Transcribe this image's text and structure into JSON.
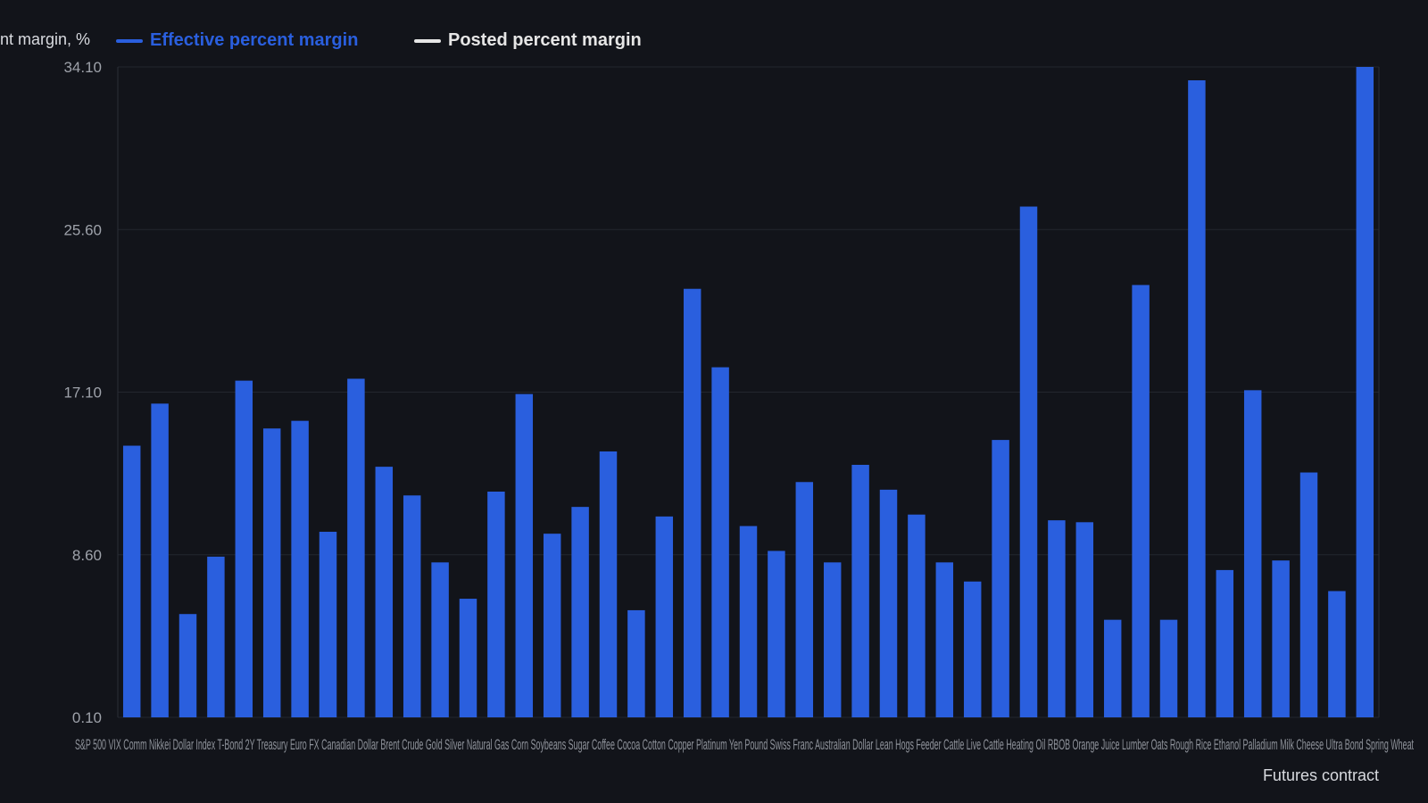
{
  "chart_data": {
    "type": "bar",
    "ylabel": "ent margin, %",
    "xlabel": "Futures contract",
    "colors": {
      "effective": "#2a5fde",
      "posted": "#e6e6e6",
      "background": "#12141a",
      "grid": "#23262e"
    },
    "legend": [
      {
        "name": "Effective percent margin",
        "color": "#2a5fde"
      },
      {
        "name": "Posted percent margin",
        "color": "#e6e6e6"
      }
    ],
    "ylim": [
      0.1,
      34.1
    ],
    "yticks": [
      "0.10",
      "8.60",
      "17.10",
      "25.60",
      "34.10"
    ],
    "tick_label_text": "S&P 500 VIX Comm Nikkei Dollar Index T-Bond 2Y Treasury Euro FX Canadian Dollar Brent Crude Gold Silver Natural Gas Corn Soybeans Sugar Coffee Cocoa Cotton Copper Platinum Yen Pound Swiss Franc Australian Dollar Lean Hogs Feeder Cattle Live Cattle Heating Oil RBOB Orange Juice Lumber Oats Rough Rice Ethanol Palladium Milk Cheese Ultra Bond Spring Wheat",
    "series": [
      {
        "name": "Effective percent margin",
        "values": [
          14.3,
          16.5,
          5.5,
          8.5,
          17.7,
          15.2,
          15.6,
          9.8,
          17.8,
          13.2,
          11.7,
          8.2,
          6.3,
          11.9,
          17.0,
          9.7,
          11.1,
          14.0,
          5.7,
          10.6,
          22.5,
          18.4,
          10.1,
          8.8,
          12.4,
          8.2,
          13.3,
          12.0,
          10.7,
          8.2,
          7.2,
          14.6,
          26.8,
          10.4,
          10.3,
          5.2,
          22.7,
          5.2,
          33.4,
          7.8,
          17.2,
          8.3,
          12.9,
          6.7,
          34.1
        ]
      }
    ]
  }
}
